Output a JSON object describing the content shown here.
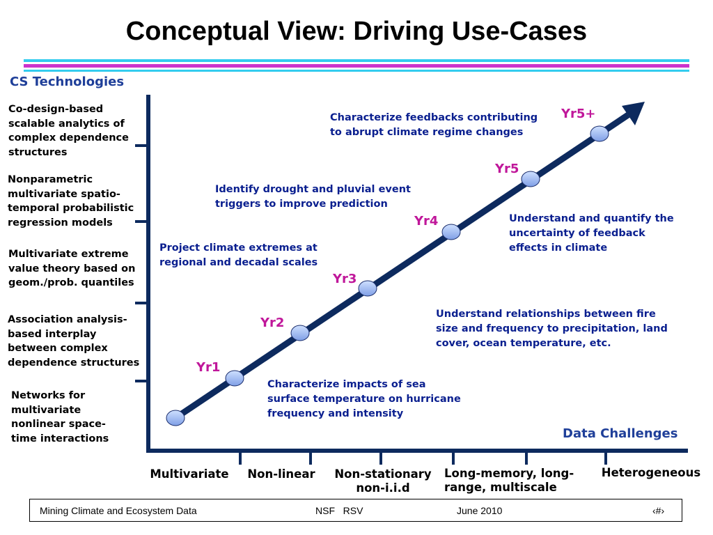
{
  "title": "Conceptual View: Driving Use-Cases",
  "y_axis_label": "CS Technologies",
  "x_axis_label": "Data Challenges",
  "technologies": [
    "Co-design-based\nscalable analytics of\ncomplex dependence\nstructures",
    "Nonparametric\nmultivariate spatio-\ntemporal probabilistic\nregression models",
    "Multivariate extreme\nvalue theory based on\ngeom./prob. quantiles",
    "Association analysis-\nbased interplay\nbetween complex\ndependence structures",
    "Networks for\nmultivariate\nnonlinear space-\ntime interactions"
  ],
  "challenges": [
    "Multivariate",
    "Non-linear",
    "Non-stationary\nnon-i.i.d",
    "Long-memory, long-\nrange, multiscale",
    "Heterogeneous"
  ],
  "milestones": [
    "Yr1",
    "Yr2",
    "Yr3",
    "Yr4",
    "Yr5",
    "Yr5+"
  ],
  "use_cases": [
    "Characterize feedbacks contributing\nto abrupt climate regime changes",
    "Identify drought and pluvial event\ntriggers to improve prediction",
    "Understand and quantify the\nuncertainty of feedback\neffects in climate",
    "Project climate extremes at\nregional and decadal scales",
    "Understand relationships between fire\nsize and frequency to precipitation, land\ncover, ocean temperature, etc.",
    "Characterize impacts of sea\nsurface temperature on hurricane\nfrequency and intensity"
  ],
  "footer": {
    "left": "Mining Climate and Ecosystem Data",
    "center": "NSF   RSV",
    "date": "June 2010",
    "page": "‹#›"
  },
  "colors": {
    "axis": "#0d2a5e",
    "node_fill": "#8fb0f0",
    "milestone_text": "#c0179a",
    "use_case_text": "#0a1f8f",
    "axis_label": "#1f3f99"
  }
}
